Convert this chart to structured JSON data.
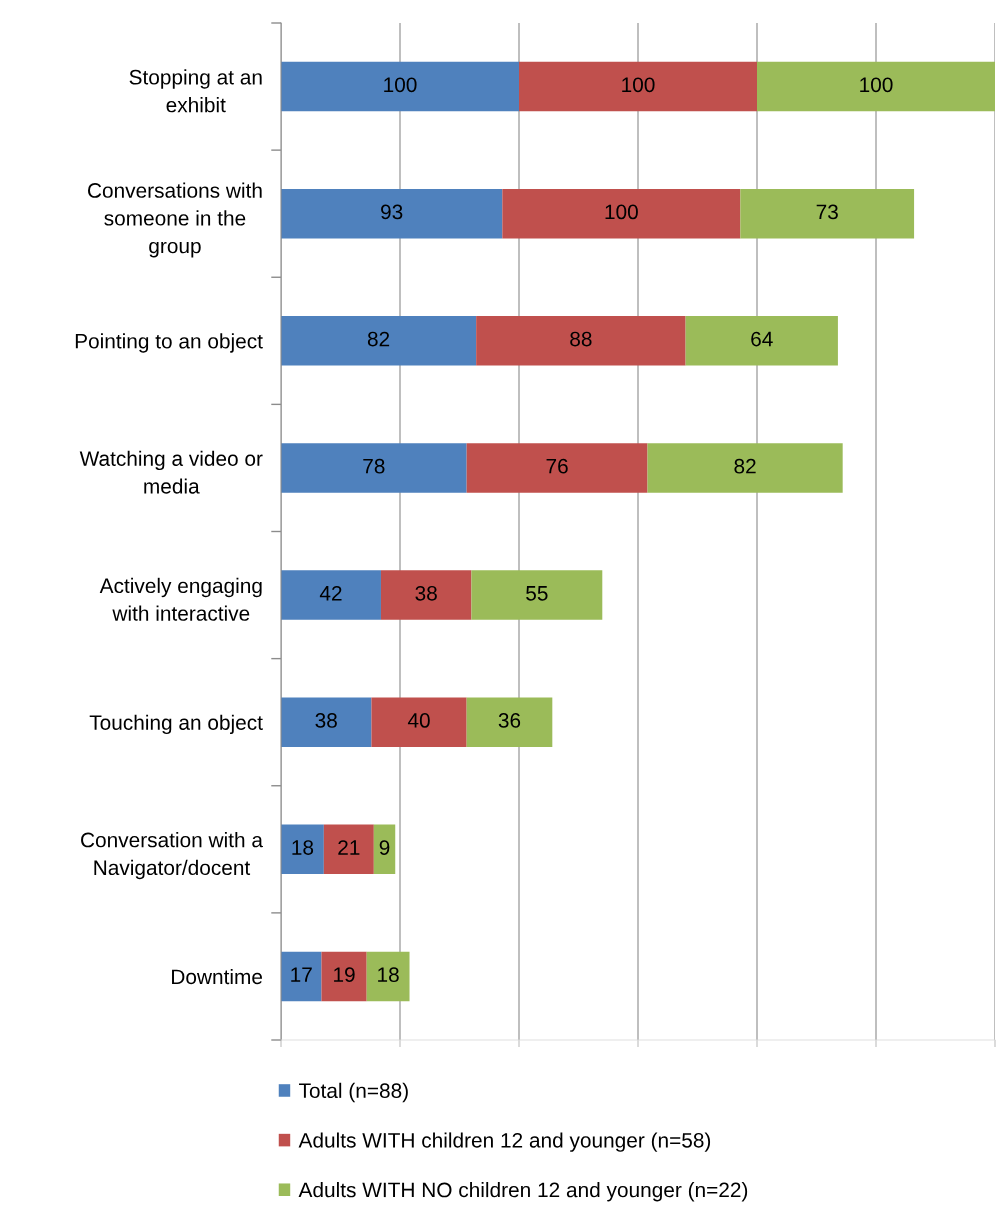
{
  "chart_data": {
    "type": "bar",
    "orientation": "horizontal",
    "stacked": true,
    "categories": [
      "Stopping at an\nexhibit",
      "Conversations with\nsomeone in the\ngroup",
      "Pointing to an object",
      "Watching a video or\nmedia",
      "Actively engaging\nwith interactive",
      "Touching an object",
      "Conversation with a\nNavigator/docent",
      "Downtime"
    ],
    "series": [
      {
        "name": "Total (n=88)",
        "color": "#4f81bd",
        "values": [
          100,
          93,
          82,
          78,
          42,
          38,
          18,
          17
        ]
      },
      {
        "name": "Adults WITH children 12 and younger (n=58)",
        "color": "#c0504d",
        "values": [
          100,
          100,
          88,
          76,
          38,
          40,
          21,
          19
        ]
      },
      {
        "name": "Adults WITH NO children 12 and younger (n=22)",
        "color": "#9bbb59",
        "values": [
          100,
          73,
          64,
          82,
          55,
          36,
          9,
          18
        ]
      }
    ],
    "xlim": [
      0,
      300
    ],
    "xticks": [
      {
        "value": 0,
        "label": null
      },
      {
        "value": 50,
        "label": null
      },
      {
        "value": 100,
        "label": null
      },
      {
        "value": 150,
        "label": null
      },
      {
        "value": 200,
        "label": null
      },
      {
        "value": 250,
        "label": null
      },
      {
        "value": 300,
        "label": null
      }
    ],
    "grid": "x",
    "tick_labels": "y",
    "data_labels": true,
    "legend": "bottom"
  }
}
